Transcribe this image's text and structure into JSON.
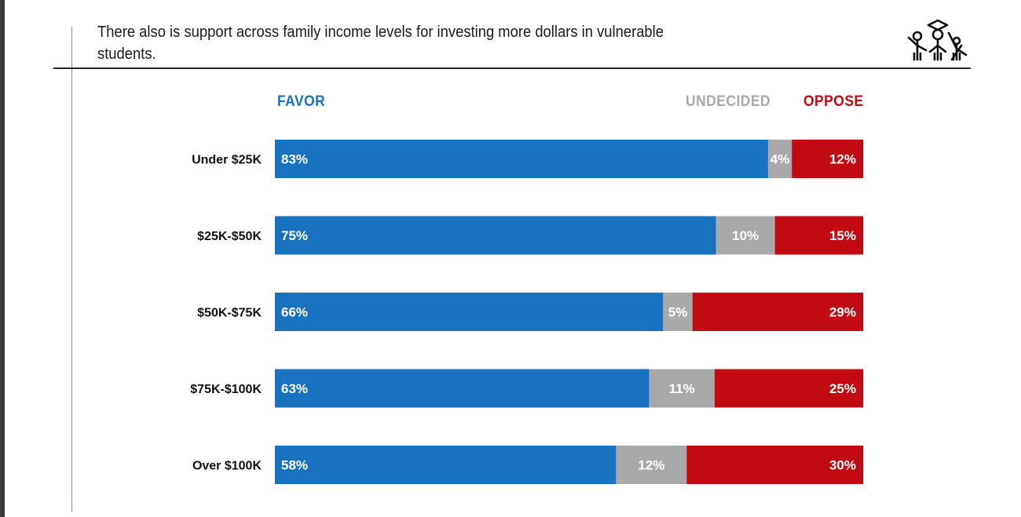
{
  "title": "There also is support across family income levels for investing more dollars in vulnerable students.",
  "logo_icon": "students-celebrating-logo-icon",
  "chart_data": {
    "type": "bar",
    "orientation": "horizontal",
    "stacked": true,
    "title": "",
    "xlabel": "",
    "ylabel": "",
    "xlim": [
      0,
      100
    ],
    "legend_position": "top",
    "categories": [
      "Under $25K",
      "$25K-$50K",
      "$50K-$75K",
      "$75K-$100K",
      "Over $100K"
    ],
    "series": [
      {
        "name": "FAVOR",
        "color": "#1872c0",
        "values": [
          83,
          75,
          66,
          63,
          58
        ],
        "labels": [
          "83%",
          "75%",
          "66%",
          "63%",
          "58%"
        ]
      },
      {
        "name": "UNDECIDED",
        "color": "#a9a9a9",
        "values": [
          4,
          10,
          5,
          11,
          12
        ],
        "labels": [
          "4%",
          "10%",
          "5%",
          "11%",
          "12%"
        ]
      },
      {
        "name": "OPPOSE",
        "color": "#c20a12",
        "values": [
          12,
          15,
          29,
          25,
          30
        ],
        "labels": [
          "12%",
          "15%",
          "29%",
          "25%",
          "30%"
        ]
      }
    ]
  }
}
